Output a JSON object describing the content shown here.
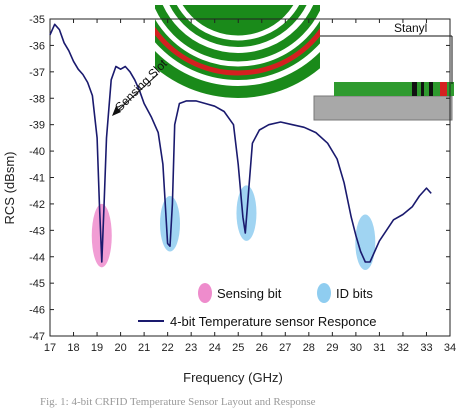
{
  "chart_data": {
    "type": "line",
    "xlabel": "Frequency (GHz)",
    "ylabel": "RCS (dBsm)",
    "xlim": [
      17,
      34
    ],
    "ylim": [
      -47,
      -35
    ],
    "xticks": [
      17,
      18,
      19,
      20,
      21,
      22,
      23,
      24,
      25,
      26,
      27,
      28,
      29,
      30,
      31,
      32,
      33,
      34
    ],
    "yticks": [
      -35,
      -36,
      -37,
      -38,
      -39,
      -40,
      -41,
      -42,
      -43,
      -44,
      -45,
      -46,
      -47
    ],
    "series": [
      {
        "name": "4-bit Temperature sensor Responce",
        "color": "#1a1a6e",
        "x": [
          17.0,
          17.2,
          17.4,
          17.6,
          17.8,
          18.0,
          18.2,
          18.4,
          18.6,
          18.8,
          19.0,
          19.1,
          19.2,
          19.3,
          19.4,
          19.6,
          19.8,
          20.0,
          20.2,
          20.4,
          20.6,
          20.8,
          21.0,
          21.3,
          21.6,
          21.8,
          22.0,
          22.1,
          22.2,
          22.3,
          22.5,
          22.8,
          23.2,
          23.6,
          24.0,
          24.4,
          24.8,
          25.0,
          25.2,
          25.3,
          25.4,
          25.6,
          25.9,
          26.3,
          26.8,
          27.3,
          27.8,
          28.3,
          28.8,
          29.2,
          29.5,
          29.8,
          30.0,
          30.2,
          30.4,
          30.6,
          30.8,
          31.0,
          31.3,
          31.6,
          32.0,
          32.4,
          32.7,
          33.0,
          33.2
        ],
        "y": [
          -35.6,
          -35.2,
          -35.4,
          -35.9,
          -36.2,
          -36.6,
          -36.9,
          -37.1,
          -37.4,
          -37.9,
          -39.5,
          -42.0,
          -44.2,
          -42.0,
          -39.5,
          -37.3,
          -36.8,
          -36.9,
          -36.8,
          -37.0,
          -37.3,
          -37.7,
          -38.2,
          -38.7,
          -39.3,
          -40.5,
          -43.5,
          -43.6,
          -42.0,
          -39.0,
          -38.2,
          -38.1,
          -38.1,
          -38.2,
          -38.3,
          -38.5,
          -39.0,
          -40.5,
          -42.5,
          -43.1,
          -42.0,
          -39.7,
          -39.2,
          -39.0,
          -38.9,
          -39.0,
          -39.1,
          -39.3,
          -39.7,
          -40.3,
          -41.2,
          -42.5,
          -43.2,
          -43.8,
          -44.2,
          -44.2,
          -43.8,
          -43.4,
          -43.0,
          -42.6,
          -42.4,
          -42.1,
          -41.7,
          -41.4,
          -41.6
        ]
      }
    ],
    "highlights": [
      {
        "name": "Sensing bit",
        "x": 19.2,
        "y_range": [
          -44.4,
          -42.0
        ],
        "color": "#ee8ccc"
      },
      {
        "name": "ID bits",
        "x": 22.1,
        "y_range": [
          -43.8,
          -41.7
        ],
        "color": "#8fcdf0"
      },
      {
        "name": "ID bits",
        "x": 25.35,
        "y_range": [
          -43.4,
          -41.3
        ],
        "color": "#8fcdf0"
      },
      {
        "name": "ID bits",
        "x": 30.4,
        "y_range": [
          -44.5,
          -42.4
        ],
        "color": "#8fcdf0"
      }
    ],
    "legend": {
      "placement": "bottom-right",
      "entries": [
        "Sensing bit",
        "ID bits",
        "4-bit Temperature sensor Responce"
      ],
      "colors": {
        "sensing": "#ee8ccc",
        "id": "#8fcdf0"
      }
    },
    "annotations": {
      "sensing_slot": "Sensing Slot",
      "stanyl": "Stanyl"
    },
    "grid": false
  },
  "caption": "Fig. 1: 4-bit CRFID Temperature Sensor Layout and Response"
}
